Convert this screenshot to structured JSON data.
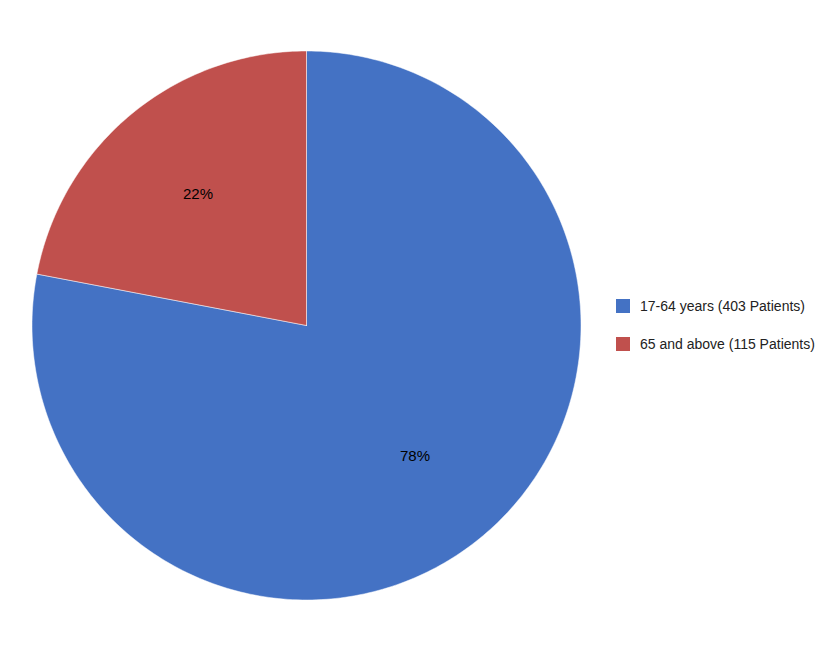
{
  "chart_data": {
    "type": "pie",
    "categories": [
      "17-64 years (403 Patients)",
      "65 and above (115 Patients)"
    ],
    "values": [
      78,
      22
    ],
    "value_labels": [
      "78%",
      "22%"
    ],
    "colors": [
      "#4472C4",
      "#C0504D"
    ],
    "data_labels": true,
    "legend": "right"
  }
}
